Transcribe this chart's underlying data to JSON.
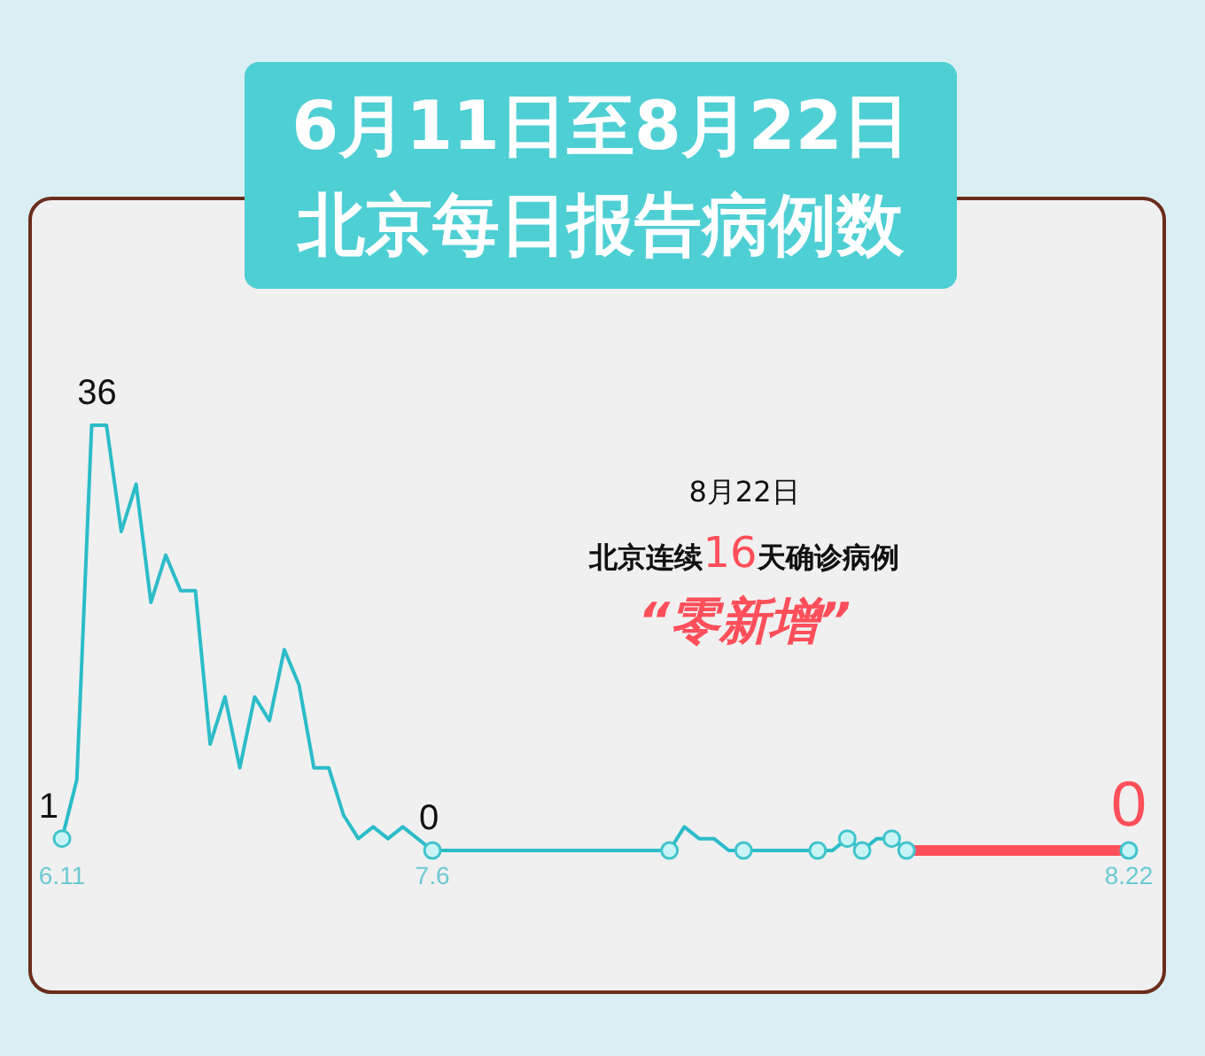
{
  "chart_data": {
    "type": "line",
    "title": "6月11日至8月22日",
    "subtitle": "北京每日报告病例数",
    "categories": [
      "6.11",
      null,
      null,
      null,
      null,
      null,
      null,
      null,
      null,
      null,
      null,
      null,
      null,
      null,
      null,
      null,
      null,
      null,
      null,
      null,
      null,
      null,
      null,
      null,
      null,
      "7.6",
      null,
      null,
      null,
      null,
      null,
      null,
      null,
      null,
      null,
      null,
      null,
      null,
      null,
      null,
      null,
      null,
      null,
      null,
      null,
      null,
      null,
      null,
      null,
      null,
      null,
      null,
      null,
      null,
      null,
      null,
      null,
      null,
      null,
      null,
      null,
      null,
      null,
      null,
      null,
      null,
      null,
      null,
      null,
      null,
      null,
      null,
      "8.22"
    ],
    "series": [
      {
        "color": "#2bbcc8",
        "marker": "none",
        "values": [
          1,
          6,
          36,
          36,
          27,
          31,
          21,
          25,
          22,
          22,
          9,
          13,
          7,
          13,
          11,
          17,
          14,
          7,
          7,
          3,
          1,
          2,
          1,
          2,
          1,
          0,
          0,
          0,
          0,
          0,
          0,
          0,
          0,
          0,
          0,
          0,
          0,
          0,
          0,
          0,
          0,
          0,
          2,
          1,
          1,
          0,
          0,
          0,
          0,
          0,
          0,
          0,
          0,
          1,
          0,
          1,
          1,
          0,
          null,
          null,
          null,
          null,
          null,
          null,
          null,
          null,
          null,
          null,
          null,
          null,
          null,
          null,
          null
        ],
        "value_labels": [
          "1",
          null,
          "36",
          null,
          null,
          null,
          null,
          null,
          null,
          null,
          null,
          null,
          null,
          null,
          null,
          null,
          null,
          null,
          null,
          null,
          null,
          null,
          null,
          null,
          null,
          "0",
          null,
          null,
          null,
          null,
          null,
          null,
          null,
          null,
          null,
          null,
          null,
          null,
          null,
          null,
          null,
          null,
          null,
          null,
          null,
          null,
          null,
          null,
          null,
          null,
          null,
          null,
          null,
          null,
          null,
          null,
          null,
          null,
          null,
          null,
          null,
          null,
          null,
          null,
          null,
          null,
          null,
          null,
          null,
          null,
          null,
          null,
          null
        ]
      },
      {
        "color": "#ff4f5a",
        "marker": "none",
        "values": [
          null,
          null,
          null,
          null,
          null,
          null,
          null,
          null,
          null,
          null,
          null,
          null,
          null,
          null,
          null,
          null,
          null,
          null,
          null,
          null,
          null,
          null,
          null,
          null,
          null,
          null,
          null,
          null,
          null,
          null,
          null,
          null,
          null,
          null,
          null,
          null,
          null,
          null,
          null,
          null,
          null,
          null,
          null,
          null,
          null,
          null,
          null,
          null,
          null,
          null,
          null,
          null,
          null,
          null,
          null,
          null,
          null,
          0,
          0,
          0,
          0,
          0,
          0,
          0,
          0,
          0,
          0,
          0,
          0,
          0,
          0,
          0,
          0
        ],
        "value_labels": [
          null,
          null,
          null,
          null,
          null,
          null,
          null,
          null,
          null,
          null,
          null,
          null,
          null,
          null,
          null,
          null,
          null,
          null,
          null,
          null,
          null,
          null,
          null,
          null,
          null,
          null,
          null,
          null,
          null,
          null,
          null,
          null,
          null,
          null,
          null,
          null,
          null,
          null,
          null,
          null,
          null,
          null,
          null,
          null,
          null,
          null,
          null,
          null,
          null,
          null,
          null,
          null,
          null,
          null,
          null,
          null,
          null,
          null,
          null,
          null,
          null,
          null,
          null,
          null,
          null,
          null,
          null,
          null,
          null,
          null,
          null,
          null,
          "0"
        ]
      },
      {
        "type": "scatter",
        "color": "#3fc4cc",
        "marker": "circle",
        "values": [
          1,
          null,
          null,
          null,
          null,
          null,
          null,
          null,
          null,
          null,
          null,
          null,
          null,
          null,
          null,
          null,
          null,
          null,
          null,
          null,
          null,
          null,
          null,
          null,
          null,
          0,
          null,
          null,
          null,
          null,
          null,
          null,
          null,
          null,
          null,
          null,
          null,
          null,
          null,
          null,
          null,
          0,
          null,
          null,
          null,
          null,
          0,
          null,
          null,
          null,
          null,
          0,
          null,
          1,
          0,
          null,
          1,
          0,
          null,
          null,
          null,
          null,
          null,
          null,
          null,
          null,
          null,
          null,
          null,
          null,
          null,
          null,
          0
        ]
      }
    ],
    "tick_labels": "x",
    "annotations": [
      "8月22日",
      "北京连续16天确诊病例",
      "“零新增”"
    ]
  }
}
